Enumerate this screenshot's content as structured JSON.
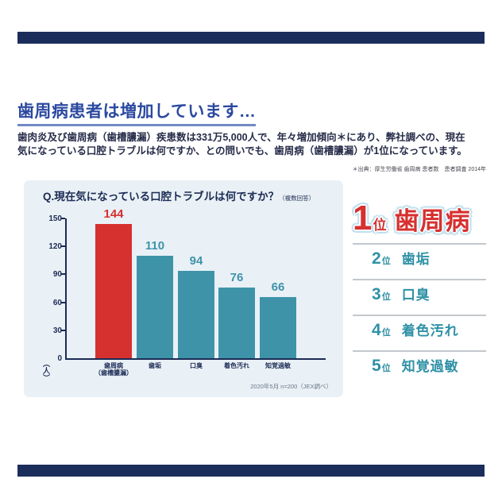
{
  "page": {
    "title": "歯周病患者は増加しています…",
    "body_line1": "歯肉炎及び歯周病（歯槽膿漏）疾患数は331万5,000人で、年々増加傾向＊にあり、弊社調べの、現在",
    "body_line2": "気になっている口腔トラブルは何ですか、との問いでも、歯周病（歯槽膿漏）が1位になっています。",
    "source_note": "＊出典：厚生労働省 歯周病 患者数　患者調査 2014年"
  },
  "chart_panel": {
    "question": "Q.現在気になっている口腔トラブルは何ですか？",
    "question_suffix": "（複数回答）",
    "unit_label": "（人）",
    "survey_note": "2020年5月 n=200（JEX調べ）"
  },
  "chart_data": {
    "type": "bar",
    "title": "Q.現在気になっている口腔トラブルは何ですか？（複数回答）",
    "categories": [
      [
        "歯周病",
        "（歯槽膿漏）"
      ],
      [
        "歯垢"
      ],
      [
        "口臭"
      ],
      [
        "着色汚れ"
      ],
      [
        "知覚過敏"
      ]
    ],
    "values": [
      144,
      110,
      94,
      76,
      66
    ],
    "ylabel": "（人）",
    "ylim": [
      0,
      150
    ],
    "yticks": [
      0,
      30,
      60,
      90,
      120,
      150
    ],
    "highlight_index": 0,
    "highlight_color": "#d6302f",
    "bar_color": "#3e93a9",
    "grid": false,
    "legend": false,
    "note": "2020年5月 n=200（JEX調べ）"
  },
  "ranking": {
    "first": {
      "rank": "1",
      "suffix": "位",
      "label": "歯周病"
    },
    "items": [
      {
        "rank": "2",
        "suffix": "位",
        "label": "歯垢"
      },
      {
        "rank": "3",
        "suffix": "位",
        "label": "口臭"
      },
      {
        "rank": "4",
        "suffix": "位",
        "label": "着色汚れ"
      },
      {
        "rank": "5",
        "suffix": "位",
        "label": "知覚過敏"
      }
    ]
  },
  "colors": {
    "deco_bar": "#1b2d5b",
    "title_blue": "#2b49a0",
    "underline_blue": "#7289c4",
    "panel_bg": "#e9f1f6",
    "axis_navy": "#1c2b55",
    "ranking_teal": "#2f91a6",
    "highlight_red": "#d6302f"
  }
}
